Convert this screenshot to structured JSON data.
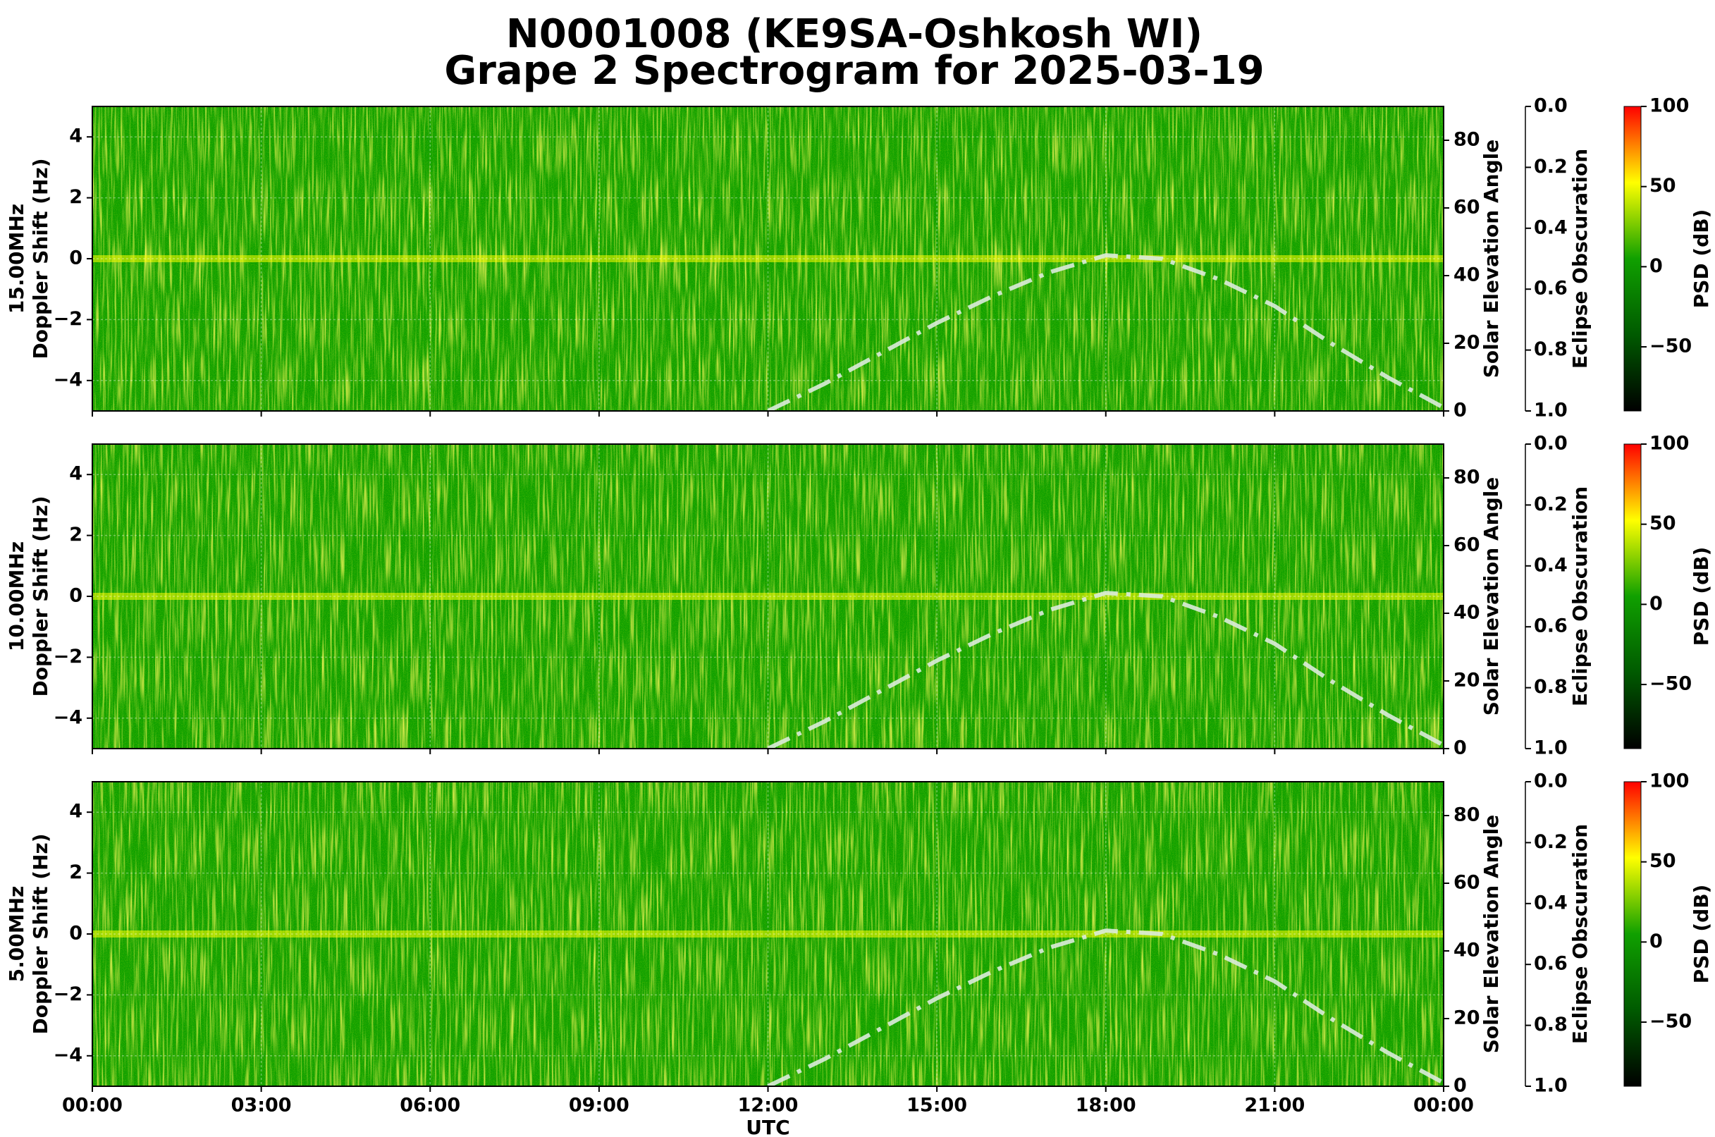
{
  "title": "N0001008 (KE9SA-Oshkosh WI)",
  "subtitle": "Grape 2 Spectrogram for 2025-03-19",
  "x_axis": {
    "xlabel": "UTC",
    "xlim": [
      0,
      24
    ],
    "xticks": [
      {
        "value": 0,
        "label": "00:00"
      },
      {
        "value": 3,
        "label": "03:00"
      },
      {
        "value": 6,
        "label": "06:00"
      },
      {
        "value": 9,
        "label": "09:00"
      },
      {
        "value": 12,
        "label": "12:00"
      },
      {
        "value": 15,
        "label": "15:00"
      },
      {
        "value": 18,
        "label": "18:00"
      },
      {
        "value": 21,
        "label": "21:00"
      },
      {
        "value": 24,
        "label": "00:00"
      }
    ]
  },
  "chart_data": [
    {
      "type": "spectrogram",
      "ylabel": [
        "15.00MHz",
        "Doppler Shift (Hz)"
      ],
      "ylim": [
        -5,
        5
      ],
      "yticks": [
        {
          "value": -4,
          "label": "−4"
        },
        {
          "value": -2,
          "label": "−2"
        },
        0,
        2,
        4
      ],
      "y2label": "Solar Elevation Angle",
      "y2lim": [
        0,
        90
      ],
      "y2ticks": [
        0,
        20,
        40,
        60,
        80
      ],
      "y3label": "Eclipse Obscuration",
      "y3lim": [
        1,
        0
      ],
      "y3ticks": [
        {
          "value": 0,
          "label": "0.0"
        },
        {
          "value": 0.2,
          "label": "0.2"
        },
        {
          "value": 0.4,
          "label": "0.4"
        },
        {
          "value": 0.6,
          "label": "0.6"
        },
        {
          "value": 0.8,
          "label": "0.8"
        },
        {
          "value": 1,
          "label": "1.0"
        }
      ],
      "colorbar": {
        "label": "PSD (dB)",
        "lim": [
          -90,
          100
        ],
        "ticks": [
          {
            "value": -50,
            "label": "−50"
          },
          0,
          50,
          100
        ],
        "colormap": [
          "#000000",
          "#005a00",
          "#10a000",
          "#ffff00",
          "#ff0000"
        ]
      },
      "x": [
        12,
        13,
        14,
        15,
        16,
        17,
        18,
        19,
        20,
        21,
        22,
        23,
        24
      ],
      "series": [
        {
          "axis": "y2",
          "color": "#dcebdc",
          "values": [
            0,
            8,
            17,
            26,
            34,
            41,
            46,
            45,
            39,
            31,
            20,
            10,
            1
          ]
        }
      ]
    },
    {
      "type": "spectrogram",
      "ylabel": [
        "10.00MHz",
        "Doppler Shift (Hz)"
      ],
      "ylim": [
        -5,
        5
      ],
      "yticks": [
        {
          "value": -4,
          "label": "−4"
        },
        {
          "value": -2,
          "label": "−2"
        },
        0,
        2,
        4
      ],
      "y2label": "Solar Elevation Angle",
      "y2lim": [
        0,
        90
      ],
      "y2ticks": [
        0,
        20,
        40,
        60,
        80
      ],
      "y3label": "Eclipse Obscuration",
      "y3lim": [
        1,
        0
      ],
      "y3ticks": [
        {
          "value": 0,
          "label": "0.0"
        },
        {
          "value": 0.2,
          "label": "0.2"
        },
        {
          "value": 0.4,
          "label": "0.4"
        },
        {
          "value": 0.6,
          "label": "0.6"
        },
        {
          "value": 0.8,
          "label": "0.8"
        },
        {
          "value": 1,
          "label": "1.0"
        }
      ],
      "colorbar": {
        "label": "PSD (dB)",
        "lim": [
          -90,
          100
        ],
        "ticks": [
          {
            "value": -50,
            "label": "−50"
          },
          0,
          50,
          100
        ],
        "colormap": [
          "#000000",
          "#005a00",
          "#10a000",
          "#ffff00",
          "#ff0000"
        ]
      },
      "x": [
        12,
        13,
        14,
        15,
        16,
        17,
        18,
        19,
        20,
        21,
        22,
        23,
        24
      ],
      "series": [
        {
          "axis": "y2",
          "color": "#dcebdc",
          "values": [
            0,
            8,
            17,
            26,
            34,
            41,
            46,
            45,
            39,
            31,
            20,
            10,
            1
          ]
        }
      ]
    },
    {
      "type": "spectrogram",
      "ylabel": [
        "5.00MHz",
        "Doppler Shift (Hz)"
      ],
      "ylim": [
        -5,
        5
      ],
      "yticks": [
        {
          "value": -4,
          "label": "−4"
        },
        {
          "value": -2,
          "label": "−2"
        },
        0,
        2,
        4
      ],
      "y2label": "Solar Elevation Angle",
      "y2lim": [
        0,
        90
      ],
      "y2ticks": [
        0,
        20,
        40,
        60,
        80
      ],
      "y3label": "Eclipse Obscuration",
      "y3lim": [
        1,
        0
      ],
      "y3ticks": [
        {
          "value": 0,
          "label": "0.0"
        },
        {
          "value": 0.2,
          "label": "0.2"
        },
        {
          "value": 0.4,
          "label": "0.4"
        },
        {
          "value": 0.6,
          "label": "0.6"
        },
        {
          "value": 0.8,
          "label": "0.8"
        },
        {
          "value": 1,
          "label": "1.0"
        }
      ],
      "colorbar": {
        "label": "PSD (dB)",
        "lim": [
          -90,
          100
        ],
        "ticks": [
          {
            "value": -50,
            "label": "−50"
          },
          0,
          50,
          100
        ],
        "colormap": [
          "#000000",
          "#005a00",
          "#10a000",
          "#ffff00",
          "#ff0000"
        ]
      },
      "x": [
        12,
        13,
        14,
        15,
        16,
        17,
        18,
        19,
        20,
        21,
        22,
        23,
        24
      ],
      "series": [
        {
          "axis": "y2",
          "color": "#dcebdc",
          "values": [
            0,
            8,
            17,
            26,
            34,
            41,
            46,
            45,
            39,
            31,
            20,
            10,
            1
          ]
        }
      ]
    }
  ]
}
